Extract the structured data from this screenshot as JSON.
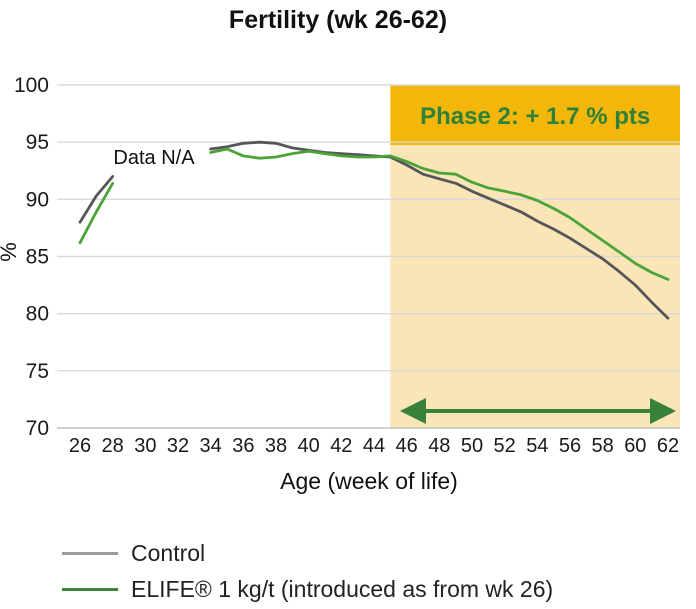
{
  "chart_data": {
    "type": "line",
    "title": "Fertility (wk 26-62)",
    "xlabel": "Age (week of life)",
    "ylabel": "%",
    "xlim": [
      26,
      62
    ],
    "ylim": [
      70,
      100
    ],
    "x_ticks": [
      26,
      28,
      30,
      32,
      34,
      36,
      38,
      40,
      42,
      44,
      46,
      48,
      50,
      52,
      54,
      56,
      58,
      60,
      62
    ],
    "y_ticks": [
      70,
      75,
      80,
      85,
      90,
      95,
      100
    ],
    "grid": true,
    "legend_position": "bottom-left",
    "annotations": {
      "data_na_label": "Data N/A",
      "phase2_label": "Phase 2: + 1.7 % pts",
      "phase2_week_span": [
        45,
        62
      ],
      "phase2_arrow": "double-headed"
    },
    "colors": {
      "phase_header_bg": "#f3b70c",
      "phase_band_bg": "#fae5b7",
      "phase_text_green": "#2f8038",
      "arrow_green": "#38813b",
      "gridline": "#d9d9d9",
      "axis_line": "#c2c2c2",
      "tick_text": "#1a1a1a"
    },
    "series": [
      {
        "name": "Control",
        "color": "#55565a",
        "legend_color": "#9d9d9d",
        "segments": [
          {
            "x": [
              26,
              27,
              28
            ],
            "y": [
              88.0,
              90.3,
              92.0
            ]
          },
          {
            "x": [
              34,
              35,
              36,
              37,
              38,
              39,
              40,
              41,
              42,
              43,
              44,
              45,
              46,
              47,
              48,
              49,
              50,
              51,
              52,
              53,
              54,
              55,
              56,
              57,
              58,
              59,
              60,
              61,
              62
            ],
            "y": [
              94.4,
              94.6,
              94.9,
              95.0,
              94.9,
              94.5,
              94.3,
              94.1,
              94.0,
              93.9,
              93.8,
              93.7,
              93.0,
              92.2,
              91.8,
              91.4,
              90.7,
              90.1,
              89.5,
              88.9,
              88.1,
              87.4,
              86.6,
              85.7,
              84.8,
              83.7,
              82.5,
              81.0,
              79.6
            ]
          }
        ]
      },
      {
        "name": "ELIFE® 1 kg/t (introduced as from wk 26)",
        "color": "#4aa437",
        "legend_color": "#3d8534",
        "segments": [
          {
            "x": [
              26,
              27,
              28
            ],
            "y": [
              86.2,
              88.9,
              91.4
            ]
          },
          {
            "x": [
              34,
              35,
              36,
              37,
              38,
              39,
              40,
              41,
              42,
              43,
              44,
              45,
              46,
              47,
              48,
              49,
              50,
              51,
              52,
              53,
              54,
              55,
              56,
              57,
              58,
              59,
              60,
              61,
              62
            ],
            "y": [
              94.1,
              94.4,
              93.8,
              93.6,
              93.7,
              94.0,
              94.2,
              94.0,
              93.8,
              93.7,
              93.7,
              93.8,
              93.3,
              92.7,
              92.3,
              92.2,
              91.5,
              91.0,
              90.7,
              90.4,
              89.9,
              89.2,
              88.4,
              87.4,
              86.4,
              85.4,
              84.4,
              83.6,
              83.0
            ]
          }
        ]
      }
    ]
  },
  "legend": {
    "items": [
      {
        "label": "Control"
      },
      {
        "label": "ELIFE® 1 kg/t (introduced as from wk 26)"
      }
    ]
  }
}
